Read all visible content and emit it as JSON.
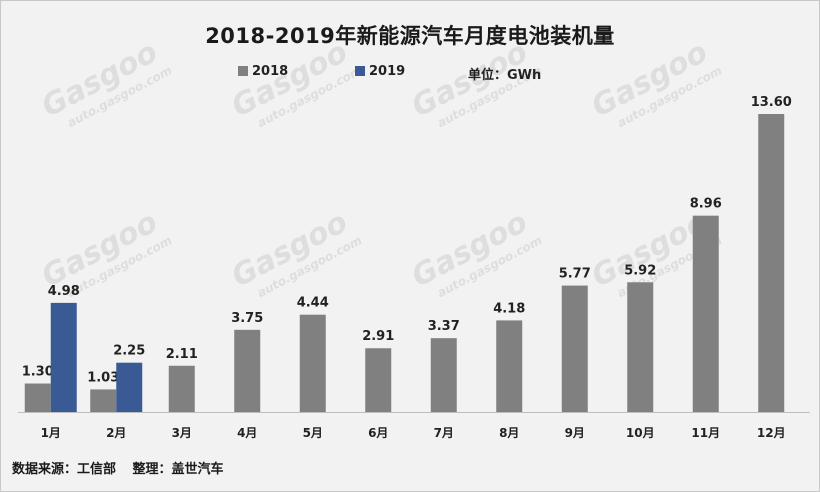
{
  "title": "2018-2019年新能源汽车月度电池装机量",
  "legend": [
    {
      "label": "2018",
      "color": "#808080"
    },
    {
      "label": "2019",
      "color": "#3a5a96"
    }
  ],
  "unit_label": "单位：GWh",
  "source": {
    "data_source": "数据来源：工信部",
    "compiled_by": "整理：盖世汽车"
  },
  "watermark": {
    "brand": "Gasgoo",
    "site": "auto.gasgoo.com"
  },
  "chart_data": {
    "type": "bar",
    "title": "2018-2019年新能源汽车月度电池装机量",
    "xlabel": "",
    "ylabel": "",
    "unit": "GWh",
    "categories": [
      "1月",
      "2月",
      "3月",
      "4月",
      "5月",
      "6月",
      "7月",
      "8月",
      "9月",
      "10月",
      "11月",
      "12月"
    ],
    "series": [
      {
        "name": "2018",
        "color": "#808080",
        "values": [
          1.3,
          1.03,
          2.11,
          3.75,
          4.44,
          2.91,
          3.37,
          4.18,
          5.77,
          5.92,
          8.96,
          13.6
        ]
      },
      {
        "name": "2019",
        "color": "#3a5a96",
        "values": [
          4.98,
          2.25,
          null,
          null,
          null,
          null,
          null,
          null,
          null,
          null,
          null,
          null
        ]
      }
    ],
    "ylim": [
      0,
      13.6
    ],
    "grid": false,
    "legend_position": "top"
  }
}
